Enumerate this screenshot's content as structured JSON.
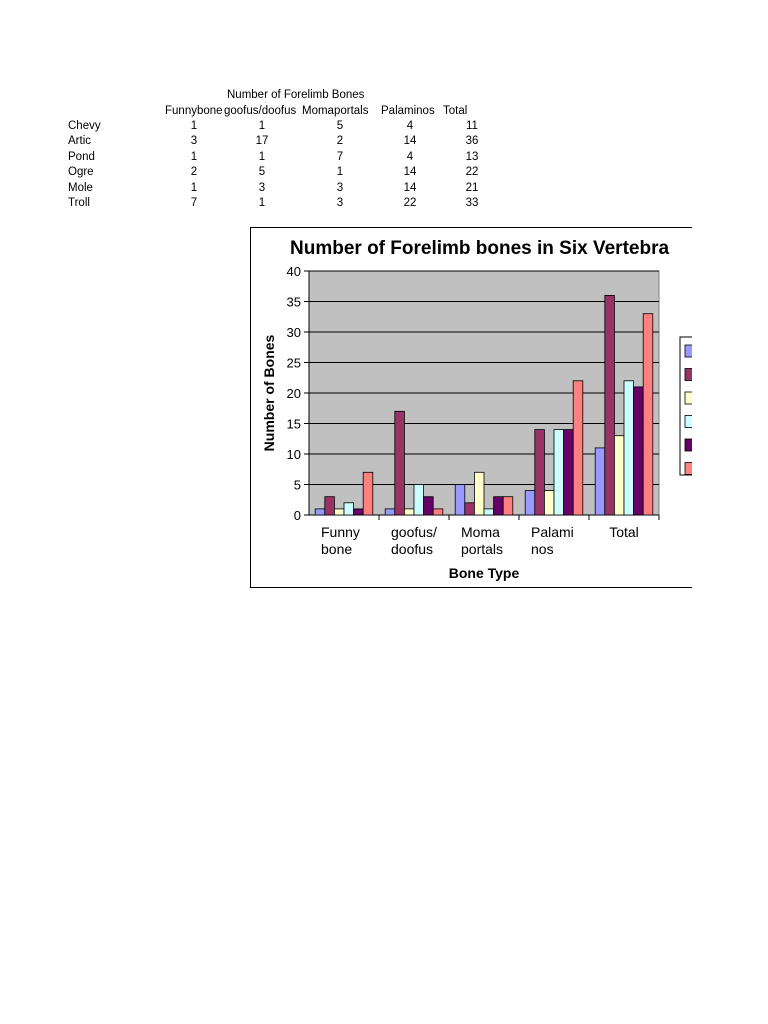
{
  "table": {
    "super_header": "Number of Forelimb Bones",
    "columns": [
      "Funnybone",
      "goofus/doofus",
      "Momaportals",
      "Palaminos",
      "Total"
    ],
    "rows": [
      {
        "label": "Chevy",
        "values": [
          1,
          1,
          5,
          4,
          11
        ]
      },
      {
        "label": "Artic",
        "values": [
          3,
          17,
          2,
          14,
          36
        ]
      },
      {
        "label": "Pond",
        "values": [
          1,
          1,
          7,
          4,
          13
        ]
      },
      {
        "label": "Ogre",
        "values": [
          2,
          5,
          1,
          14,
          22
        ]
      },
      {
        "label": "Mole",
        "values": [
          1,
          3,
          3,
          14,
          21
        ]
      },
      {
        "label": "Troll",
        "values": [
          7,
          1,
          3,
          22,
          33
        ]
      }
    ]
  },
  "chart_data": {
    "type": "bar",
    "title": "Number of Forelimb bones in Six Vertebra",
    "xlabel": "Bone Type",
    "ylabel": "Number of Bones",
    "ylim": [
      0,
      40
    ],
    "yticks": [
      0,
      5,
      10,
      15,
      20,
      25,
      30,
      35,
      40
    ],
    "categories": [
      [
        "Funny",
        "bone"
      ],
      [
        "goofus/",
        "doofus"
      ],
      [
        "Moma",
        "portals"
      ],
      [
        "Palami",
        "nos"
      ],
      [
        "Total"
      ]
    ],
    "series": [
      {
        "values": [
          1,
          1,
          5,
          4,
          11
        ],
        "color": "#9999ff"
      },
      {
        "values": [
          3,
          17,
          2,
          14,
          36
        ],
        "color": "#993366"
      },
      {
        "values": [
          1,
          1,
          7,
          4,
          13
        ],
        "color": "#ffffcc"
      },
      {
        "values": [
          2,
          5,
          1,
          14,
          22
        ],
        "color": "#ccffff"
      },
      {
        "values": [
          1,
          3,
          3,
          14,
          21
        ],
        "color": "#660066"
      },
      {
        "values": [
          7,
          1,
          3,
          22,
          33
        ],
        "color": "#ff8080"
      }
    ],
    "plot_background": "#c0c0c0",
    "grid": true,
    "legend": "right"
  }
}
